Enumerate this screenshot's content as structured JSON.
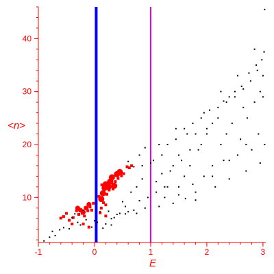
{
  "chart_data": {
    "type": "scatter",
    "title": "",
    "xlabel": "E",
    "ylabel": "<n>",
    "xlim": [
      -1,
      3.05
    ],
    "ylim": [
      1.5,
      46
    ],
    "grid": false,
    "x_ticks": [
      -1,
      0,
      1,
      2,
      3
    ],
    "y_ticks": [
      10,
      20,
      30,
      40
    ],
    "axis_color": "#ff0000",
    "vertical_lines": [
      {
        "x": 0.03,
        "color": "#0000ff"
      },
      {
        "x": 1.0,
        "color": "#e000e0"
      }
    ],
    "series": [
      {
        "color": "#ff0000",
        "marker": "circle",
        "points": [
          [
            0.12,
            9.7
          ],
          [
            0.15,
            10.8
          ],
          [
            0.18,
            11.8
          ],
          [
            0.2,
            12.5
          ],
          [
            0.25,
            12.0
          ],
          [
            0.28,
            13.0
          ],
          [
            0.31,
            13.8
          ],
          [
            0.35,
            12.2
          ],
          [
            0.4,
            14.4
          ],
          [
            0.45,
            14.8
          ],
          [
            -0.3,
            8.0
          ],
          [
            -0.25,
            7.6
          ],
          [
            -0.2,
            7.2
          ],
          [
            -0.15,
            8.0
          ],
          [
            -0.1,
            8.7
          ]
        ]
      },
      {
        "color": "#ff0000",
        "marker": "square",
        "points": [
          [
            -0.55,
            6.4
          ],
          [
            -0.5,
            7.0
          ],
          [
            -0.45,
            5.7
          ],
          [
            -0.38,
            6.2
          ],
          [
            -0.32,
            7.5
          ],
          [
            -0.28,
            6.8
          ],
          [
            -0.22,
            7.0
          ],
          [
            -0.18,
            6.5
          ],
          [
            -0.12,
            7.5
          ],
          [
            -0.08,
            8.2
          ],
          [
            -0.05,
            7.6
          ],
          [
            -0.02,
            8.9
          ],
          [
            -0.1,
            4.4
          ],
          [
            -0.2,
            5.0
          ],
          [
            -0.4,
            5.0
          ],
          [
            -0.6,
            6.1
          ],
          [
            0.1,
            7.1
          ],
          [
            0.12,
            8.0
          ],
          [
            0.16,
            9.0
          ],
          [
            0.2,
            8.6
          ],
          [
            0.22,
            10.6
          ],
          [
            0.26,
            11.4
          ],
          [
            0.3,
            12.8
          ],
          [
            0.33,
            11.6
          ],
          [
            0.37,
            13.0
          ],
          [
            0.42,
            13.6
          ],
          [
            0.48,
            14.1
          ],
          [
            0.52,
            14.5
          ],
          [
            0.58,
            15.8
          ],
          [
            0.62,
            15.6
          ],
          [
            0.66,
            16.0
          ],
          [
            0.2,
            6.5
          ],
          [
            0.08,
            10.2
          ],
          [
            0.13,
            12.4
          ]
        ]
      },
      {
        "color": "#000000",
        "marker": "dot",
        "points": [
          [
            -0.9,
            1.8
          ],
          [
            -0.8,
            2.5
          ],
          [
            -0.75,
            3.6
          ],
          [
            -0.7,
            2.8
          ],
          [
            -0.62,
            3.9
          ],
          [
            -0.55,
            4.3
          ],
          [
            -0.45,
            4.1
          ],
          [
            -0.4,
            6.2
          ],
          [
            -0.35,
            6.9
          ],
          [
            -0.3,
            5.3
          ],
          [
            -0.2,
            7.6
          ],
          [
            -0.15,
            5.8
          ],
          [
            -0.05,
            4.4
          ],
          [
            0.05,
            5.3
          ],
          [
            0.1,
            7.3
          ],
          [
            0.15,
            4.2
          ],
          [
            0.2,
            5.0
          ],
          [
            0.25,
            7.4
          ],
          [
            0.3,
            6.0
          ],
          [
            0.35,
            6.2
          ],
          [
            0.4,
            6.8
          ],
          [
            0.45,
            7.0
          ],
          [
            0.5,
            9.2
          ],
          [
            0.55,
            6.9
          ],
          [
            0.6,
            7.3
          ],
          [
            0.65,
            11.0
          ],
          [
            0.7,
            7.6
          ],
          [
            0.75,
            12.0
          ],
          [
            0.8,
            9.4
          ],
          [
            0.85,
            13.5
          ],
          [
            0.9,
            8.0
          ],
          [
            0.95,
            10.0
          ],
          [
            0.6,
            16.8
          ],
          [
            0.7,
            15.8
          ],
          [
            0.8,
            18.0
          ],
          [
            0.85,
            16.0
          ],
          [
            0.9,
            19.4
          ],
          [
            1.05,
            17.0
          ],
          [
            1.1,
            13.0
          ],
          [
            1.15,
            8.3
          ],
          [
            1.2,
            18.0
          ],
          [
            1.25,
            10.0
          ],
          [
            1.3,
            20.0
          ],
          [
            1.35,
            15.0
          ],
          [
            1.4,
            8.9
          ],
          [
            1.45,
            21.0
          ],
          [
            1.5,
            12.0
          ],
          [
            1.55,
            17.0
          ],
          [
            1.6,
            23.0
          ],
          [
            1.62,
            9.8
          ],
          [
            1.7,
            16.0
          ],
          [
            1.75,
            24.0
          ],
          [
            1.8,
            11.0
          ],
          [
            1.85,
            19.0
          ],
          [
            1.9,
            25.0
          ],
          [
            1.95,
            14.0
          ],
          [
            2.0,
            22.0
          ],
          [
            2.05,
            26.5
          ],
          [
            2.1,
            16.0
          ],
          [
            2.15,
            12.0
          ],
          [
            2.2,
            27.0
          ],
          [
            2.25,
            20.0
          ],
          [
            2.3,
            17.0
          ],
          [
            2.35,
            28.0
          ],
          [
            2.4,
            13.5
          ],
          [
            2.45,
            24.0
          ],
          [
            2.5,
            29.0
          ],
          [
            2.55,
            18.0
          ],
          [
            2.6,
            21.0
          ],
          [
            2.65,
            30.5
          ],
          [
            2.7,
            15.0
          ],
          [
            2.72,
            25.0
          ],
          [
            2.78,
            32.0
          ],
          [
            2.8,
            19.0
          ],
          [
            2.85,
            28.0
          ],
          [
            2.9,
            34.0
          ],
          [
            2.92,
            22.0
          ],
          [
            2.95,
            16.5
          ],
          [
            2.98,
            36.0
          ],
          [
            3.0,
            29.0
          ],
          [
            3.02,
            37.5
          ],
          [
            3.03,
            20.0
          ],
          [
            3.03,
            45.5
          ],
          [
            2.88,
            35.0
          ],
          [
            2.75,
            33.5
          ],
          [
            2.62,
            31.0
          ],
          [
            2.5,
            30.0
          ],
          [
            2.4,
            29.0
          ],
          [
            2.3,
            28.2
          ],
          [
            2.2,
            25.0
          ],
          [
            2.1,
            24.0
          ],
          [
            2.0,
            23.0
          ],
          [
            1.9,
            20.0
          ],
          [
            1.8,
            22.0
          ],
          [
            1.7,
            19.0
          ],
          [
            1.6,
            14.0
          ],
          [
            1.5,
            18.0
          ],
          [
            1.4,
            16.0
          ],
          [
            1.3,
            12.0
          ],
          [
            1.2,
            14.5
          ],
          [
            1.1,
            11.0
          ],
          [
            1.0,
            16.5
          ],
          [
            1.95,
            26.0
          ],
          [
            2.25,
            30.0
          ],
          [
            2.55,
            33.0
          ],
          [
            2.85,
            38.0
          ],
          [
            3.0,
            33.0
          ],
          [
            2.7,
            20.0
          ],
          [
            2.4,
            17.0
          ],
          [
            2.1,
            14.0
          ],
          [
            1.8,
            9.5
          ],
          [
            1.5,
            10.5
          ],
          [
            1.25,
            12.0
          ],
          [
            1.15,
            20.0
          ],
          [
            1.45,
            23.0
          ],
          [
            1.65,
            22.0
          ],
          [
            1.75,
            12.5
          ],
          [
            2.35,
            22.0
          ],
          [
            2.65,
            27.0
          ],
          [
            2.95,
            30.0
          ],
          [
            0.3,
            4.8
          ],
          [
            0.0,
            5.6
          ],
          [
            -0.25,
            4.8
          ],
          [
            0.55,
            8.3
          ],
          [
            0.75,
            7.0
          ]
        ]
      }
    ]
  }
}
